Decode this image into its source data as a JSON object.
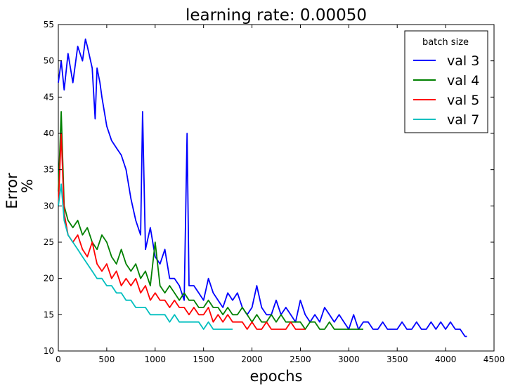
{
  "chart_data": {
    "type": "line",
    "title": "learning rate: 0.00050",
    "xlabel": "epochs",
    "ylabel_lines": [
      "Error",
      "%"
    ],
    "xlim": [
      0,
      4500
    ],
    "ylim": [
      10,
      55
    ],
    "xticks": [
      0,
      500,
      1000,
      1500,
      2000,
      2500,
      3000,
      3500,
      4000,
      4500
    ],
    "yticks": [
      10,
      15,
      20,
      25,
      30,
      35,
      40,
      45,
      50,
      55
    ],
    "grid": false,
    "legend": {
      "title": "batch size",
      "placement": "top-right",
      "entries": [
        "val 3",
        "val 4",
        "val 5",
        "val 7"
      ]
    },
    "series": [
      {
        "name": "val 3",
        "color": "#0000ff",
        "x": [
          0,
          30,
          60,
          100,
          150,
          200,
          250,
          280,
          300,
          350,
          380,
          400,
          430,
          450,
          500,
          550,
          600,
          650,
          700,
          750,
          800,
          850,
          870,
          900,
          950,
          1000,
          1050,
          1100,
          1150,
          1200,
          1250,
          1300,
          1330,
          1350,
          1400,
          1450,
          1500,
          1550,
          1600,
          1650,
          1700,
          1750,
          1800,
          1850,
          1900,
          1950,
          2000,
          2050,
          2100,
          2150,
          2200,
          2250,
          2300,
          2350,
          2400,
          2450,
          2500,
          2550,
          2600,
          2650,
          2700,
          2750,
          2800,
          2850,
          2900,
          2950,
          3000,
          3050,
          3100,
          3150,
          3200,
          3250,
          3300,
          3350,
          3400,
          3450,
          3500,
          3550,
          3600,
          3650,
          3700,
          3750,
          3800,
          3850,
          3900,
          3950,
          4000,
          4050,
          4100,
          4150,
          4200,
          4220
        ],
        "y": [
          47,
          50,
          46,
          51,
          47,
          52,
          50,
          53,
          52,
          49,
          42,
          49,
          47,
          45,
          41,
          39,
          38,
          37,
          35,
          31,
          28,
          26,
          43,
          24,
          27,
          23,
          22,
          24,
          20,
          20,
          19,
          17,
          40,
          19,
          19,
          18,
          17,
          20,
          18,
          17,
          16,
          18,
          17,
          18,
          16,
          15,
          16,
          19,
          16,
          15,
          15,
          17,
          15,
          16,
          15,
          14,
          17,
          15,
          14,
          15,
          14,
          16,
          15,
          14,
          15,
          14,
          13,
          15,
          13,
          14,
          14,
          13,
          13,
          14,
          13,
          13,
          13,
          14,
          13,
          13,
          14,
          13,
          13,
          14,
          13,
          14,
          13,
          14,
          13,
          13,
          12,
          12
        ]
      },
      {
        "name": "val 4",
        "color": "#008000",
        "x": [
          0,
          30,
          60,
          100,
          150,
          200,
          250,
          300,
          350,
          400,
          450,
          500,
          550,
          600,
          650,
          700,
          750,
          800,
          850,
          900,
          950,
          1000,
          1050,
          1100,
          1150,
          1200,
          1250,
          1300,
          1350,
          1400,
          1450,
          1500,
          1550,
          1600,
          1650,
          1700,
          1750,
          1800,
          1850,
          1900,
          1950,
          2000,
          2050,
          2100,
          2150,
          2200,
          2250,
          2300,
          2350,
          2400,
          2450,
          2500,
          2550,
          2600,
          2650,
          2700,
          2750,
          2800,
          2850,
          2900,
          2950,
          3000,
          3050,
          3100,
          3150
        ],
        "y": [
          32,
          43,
          30,
          28,
          27,
          28,
          26,
          27,
          25,
          24,
          26,
          25,
          23,
          22,
          24,
          22,
          21,
          22,
          20,
          21,
          19,
          25,
          19,
          18,
          19,
          18,
          17,
          18,
          17,
          17,
          16,
          16,
          17,
          16,
          16,
          15,
          16,
          15,
          15,
          16,
          15,
          14,
          15,
          14,
          14,
          15,
          14,
          15,
          14,
          14,
          14,
          14,
          13,
          14,
          14,
          13,
          13,
          14,
          13,
          13,
          13,
          13,
          13,
          13,
          13
        ]
      },
      {
        "name": "val 5",
        "color": "#ff0000",
        "x": [
          0,
          30,
          60,
          100,
          150,
          200,
          250,
          300,
          350,
          400,
          450,
          500,
          550,
          600,
          650,
          700,
          750,
          800,
          850,
          900,
          950,
          1000,
          1050,
          1100,
          1150,
          1200,
          1250,
          1300,
          1350,
          1400,
          1450,
          1500,
          1550,
          1600,
          1650,
          1700,
          1750,
          1800,
          1850,
          1900,
          1950,
          2000,
          2050,
          2100,
          2150,
          2200,
          2250,
          2300,
          2350,
          2400,
          2450,
          2500,
          2550
        ],
        "y": [
          30,
          40,
          29,
          26,
          25,
          26,
          24,
          23,
          25,
          22,
          21,
          22,
          20,
          21,
          19,
          20,
          19,
          20,
          18,
          19,
          17,
          18,
          17,
          17,
          16,
          17,
          16,
          16,
          15,
          16,
          15,
          15,
          16,
          14,
          15,
          14,
          15,
          14,
          14,
          14,
          13,
          14,
          13,
          13,
          14,
          13,
          13,
          13,
          13,
          14,
          13,
          13,
          13
        ]
      },
      {
        "name": "val 7",
        "color": "#00bfbf",
        "x": [
          0,
          30,
          60,
          100,
          150,
          200,
          250,
          300,
          350,
          400,
          450,
          500,
          550,
          600,
          650,
          700,
          750,
          800,
          850,
          900,
          950,
          1000,
          1050,
          1100,
          1150,
          1200,
          1250,
          1300,
          1350,
          1400,
          1450,
          1500,
          1550,
          1600,
          1650,
          1700,
          1750,
          1800
        ],
        "y": [
          30,
          33,
          28,
          26,
          25,
          24,
          23,
          22,
          21,
          20,
          20,
          19,
          19,
          18,
          18,
          17,
          17,
          16,
          16,
          16,
          15,
          15,
          15,
          15,
          14,
          15,
          14,
          14,
          14,
          14,
          14,
          13,
          14,
          13,
          13,
          13,
          13,
          13
        ]
      }
    ]
  }
}
